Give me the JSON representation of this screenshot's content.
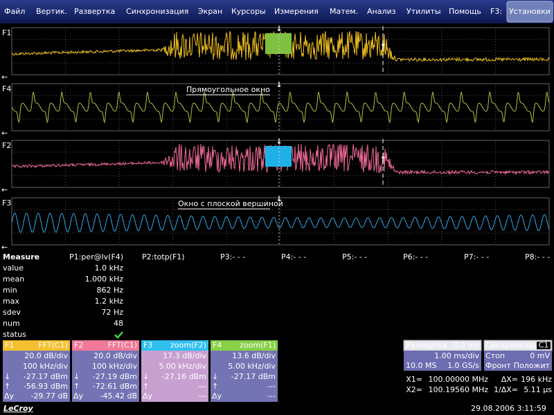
{
  "menu": {
    "items": [
      "Файл",
      "Вертик.",
      "Развертка",
      "Синхронизация",
      "Экран",
      "Курсоры",
      "Измерения",
      "Матем.",
      "Анализ",
      "Утилиты",
      "Помощь"
    ],
    "f3_label": "F3:",
    "button": "Установки"
  },
  "traces": [
    {
      "id": "F1"
    },
    {
      "id": "F4",
      "caption": "Прямоугольное окно"
    },
    {
      "id": "F2"
    },
    {
      "id": "F3",
      "caption": "Окно с плоской вершиной"
    }
  ],
  "measure": {
    "title": "Measure",
    "columns": [
      "P1:per@lv(F4)",
      "P2:totp(F1)",
      "P3:- - -",
      "P4:- - -",
      "P5:- - -",
      "P6:- - -",
      "P7:- - -",
      "P8:- - -"
    ],
    "rows": [
      {
        "label": "value",
        "value": "1.0 kHz"
      },
      {
        "label": "mean",
        "value": "1.000 kHz"
      },
      {
        "label": "min",
        "value": "862 Hz"
      },
      {
        "label": "max",
        "value": "1.2 kHz"
      },
      {
        "label": "sdev",
        "value": "72 Hz"
      },
      {
        "label": "num",
        "value": "48"
      },
      {
        "label": "status"
      }
    ]
  },
  "panels": [
    {
      "id": "F1",
      "func": "FFT(C1)",
      "vdiv": "20.0 dB/div",
      "hdiv": "100 kHz/div",
      "rows": [
        {
          "sym": "↓",
          "value": "-27.17 dBm"
        },
        {
          "sym": "↑",
          "value": "-56.93 dBm"
        },
        {
          "sym": "Δy",
          "value": "-29.77 dB"
        }
      ]
    },
    {
      "id": "F2",
      "func": "FFT(C1)",
      "vdiv": "20.0 dB/div",
      "hdiv": "100 kHz/div",
      "rows": [
        {
          "sym": "↓",
          "value": "-27.19 dBm"
        },
        {
          "sym": "↑",
          "value": "-72.61 dBm"
        },
        {
          "sym": "Δy",
          "value": "-45.42 dB"
        }
      ]
    },
    {
      "id": "F3",
      "func": "zoom(F2)",
      "vdiv": "17.3 dB/div",
      "hdiv": "5.00 kHz/div",
      "rows": [
        {
          "sym": "↓",
          "value": "-27.16 dBm"
        },
        {
          "sym": "↑",
          "value": "---"
        },
        {
          "sym": "Δy",
          "value": "---"
        }
      ]
    },
    {
      "id": "F4",
      "func": "zoom(F1)",
      "vdiv": "13.6 dB/div",
      "hdiv": "5.00 kHz/div",
      "rows": [
        {
          "sym": "↓",
          "value": "-27.17 dBm"
        },
        {
          "sym": "↑",
          "value": "---"
        },
        {
          "sym": "Δy",
          "value": "---"
        }
      ]
    }
  ],
  "timebase": {
    "title": "Развертка",
    "delay": "0.0 ms",
    "tdiv": "1.00 ms/div",
    "samples": "10.0 MS",
    "rate": "1.0 GS/s"
  },
  "trigger": {
    "title": "Синхронизац",
    "source": "C1",
    "mode": "Стоп",
    "level": "0 mV",
    "type": "Фронт",
    "slope": "Положит"
  },
  "cursors": [
    {
      "label": "X1=",
      "value": "100.00000 MHz",
      "dlabel": "ΔX=",
      "dvalue": "196 kHz"
    },
    {
      "label": "X2=",
      "value": "100.19560 MHz",
      "dlabel": "1/ΔX=",
      "dvalue": "5.11 μs"
    }
  ],
  "footer": {
    "brand": "LeCroy",
    "datetime": "29.08.2006 3:11:59"
  }
}
